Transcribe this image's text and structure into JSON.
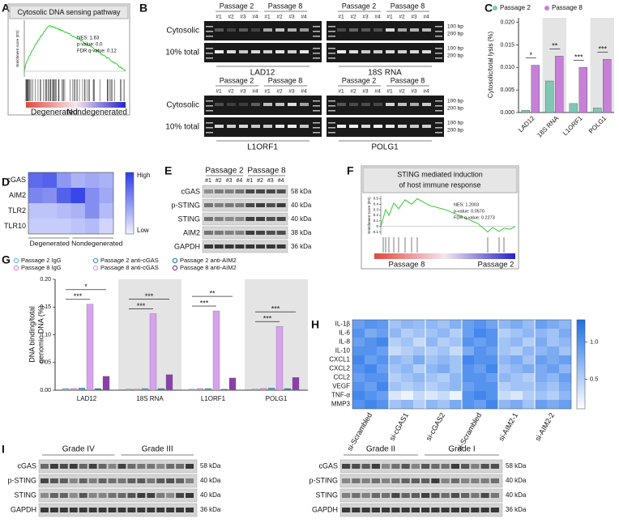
{
  "A": {
    "label": "A",
    "title": "Cytosolic DNA sensing pathway",
    "y_label": "Enrichment score (ES)",
    "stats": [
      "NES: 1.63",
      "p-value: 0.0",
      "FDR q-value: 0.12"
    ],
    "groups": [
      "Degenerated",
      "Nondegenerated"
    ]
  },
  "B": {
    "label": "B",
    "gel_rows": [
      {
        "row_labels": [
          "Cytosolic",
          "10% total"
        ],
        "sizes": [
          "100 bp",
          "200 bp"
        ],
        "gels": [
          {
            "name": "LAD12",
            "passages": [
              "Passage 2",
              "Passage 8"
            ],
            "lanes": [
              "#1",
              "#2",
              "#3",
              "#4",
              "#1",
              "#2",
              "#3",
              "#4"
            ]
          },
          {
            "name": "18S RNA",
            "passages": [
              "Passage 2",
              "Passage 8"
            ],
            "lanes": [
              "#1",
              "#2",
              "#3",
              "#4",
              "#1",
              "#2",
              "#3",
              "#4"
            ]
          }
        ]
      },
      {
        "row_labels": [
          "Cytosolic",
          "10% total"
        ],
        "sizes": [
          "100 bp",
          "200 bp"
        ],
        "gels": [
          {
            "name": "L1ORF1",
            "passages": [
              "Passage 2",
              "Passage 8"
            ],
            "lanes": [
              "#1",
              "#2",
              "#3",
              "#4",
              "#1",
              "#2",
              "#3",
              "#4"
            ]
          },
          {
            "name": "POLG1",
            "passages": [
              "Passage 2",
              "Passage 8"
            ],
            "lanes": [
              "#1",
              "#2",
              "#3",
              "#4",
              "#1",
              "#2",
              "#3",
              "#4"
            ]
          }
        ]
      }
    ]
  },
  "C": {
    "label": "C",
    "y_label": "Cytosolic/total lysis (%)",
    "categories": [
      "LAD12",
      "18S RNA",
      "L1ORF1",
      "POLG1"
    ],
    "series": [
      {
        "name": "Passage 2",
        "color": "#7fc7b5",
        "values": [
          0.0005,
          0.007,
          0.002,
          0.001
        ]
      },
      {
        "name": "Passage 8",
        "color": "#c77fd8",
        "values": [
          0.0105,
          0.0125,
          0.01,
          0.0118
        ]
      }
    ],
    "ylim": [
      0,
      0.021
    ],
    "yticks": [
      {
        "value": 0,
        "label": "0.000"
      },
      {
        "value": 0.005,
        "label": "0.005"
      },
      {
        "value": 0.01,
        "label": "0.010"
      },
      {
        "value": 0.015,
        "label": "0.015"
      },
      {
        "value": 0.02,
        "label": "0.020"
      }
    ],
    "significance": [
      "*",
      "**",
      "***",
      "***"
    ]
  },
  "D": {
    "label": "D",
    "rows": [
      "cGAS",
      "AIM2",
      "TLR2",
      "TLR10"
    ],
    "groups": [
      "Degenerated",
      "Nondegenerated"
    ],
    "colorbar": [
      "High",
      "Low"
    ],
    "values": [
      [
        0.75,
        0.8,
        0.5,
        0.35,
        0.4,
        0.35
      ],
      [
        0.6,
        0.55,
        0.8,
        0.95,
        0.55,
        0.4
      ],
      [
        0.25,
        0.25,
        0.3,
        0.35,
        0.55,
        0.3
      ],
      [
        0.2,
        0.2,
        0.2,
        0.25,
        0.3,
        0.15
      ]
    ]
  },
  "E": {
    "label": "E",
    "passages": [
      "Passage 2",
      "Passage 8"
    ],
    "lanes": [
      "#1",
      "#2",
      "#3",
      "#4",
      "#1",
      "#2",
      "#3",
      "#4"
    ],
    "proteins": [
      "cGAS",
      "p-STING",
      "STING",
      "AIM2",
      "GAPDH"
    ],
    "sizes": [
      "58 kDa",
      "40 kDa",
      "40 kDa",
      "38 kDa",
      "36 kDa"
    ]
  },
  "F": {
    "label": "F",
    "title": [
      "STING mediated induction",
      "of host immune response"
    ],
    "y_label": "Enrichment score (ES)",
    "ylim": [
      -0.15,
      0.55
    ],
    "yticks": [
      0.5,
      0.4,
      0.3,
      0.2,
      0.1,
      0,
      -0.1
    ],
    "stats": [
      "NES: 1.2003",
      "p-value: 0.0570",
      "FDR q-value: 0.2273"
    ],
    "groups": [
      "Passage 8",
      "Passage 2"
    ]
  },
  "G": {
    "label": "G",
    "y_label": [
      "DNA binding/total",
      "genomic DNA (%)"
    ],
    "categories": [
      "LAD12",
      "18S RNA",
      "L1ORF1",
      "POLG1"
    ],
    "series": [
      {
        "name": "Passage 2 IgG",
        "color": "#6fb9e8",
        "values": [
          0.003,
          0.002,
          0.002,
          0.002
        ]
      },
      {
        "name": "Passage 8 IgG",
        "color": "#e48bd2",
        "values": [
          0.003,
          0.002,
          0.003,
          0.003
        ]
      },
      {
        "name": "Passage 2 anti-cGAS",
        "color": "#4a9fc8",
        "values": [
          0.004,
          0.003,
          0.003,
          0.004
        ]
      },
      {
        "name": "Passage 8 anti-cGAS",
        "color": "#d6a2f0",
        "values": [
          0.155,
          0.138,
          0.143,
          0.115
        ]
      },
      {
        "name": "Passage 2 anti-AIM2",
        "color": "#2a8a9a",
        "values": [
          0.003,
          0.003,
          0.002,
          0.003
        ]
      },
      {
        "name": "Passage 8 anti-AIM2",
        "color": "#8b3fa8",
        "values": [
          0.025,
          0.028,
          0.022,
          0.023
        ]
      }
    ],
    "ylim": [
      0,
      0.2
    ],
    "yticks": [
      {
        "value": 0,
        "label": "0.00"
      },
      {
        "value": 0.05,
        "label": "0.05"
      },
      {
        "value": 0.1,
        "label": "0.10"
      },
      {
        "value": 0.15,
        "label": "0.15"
      },
      {
        "value": 0.2,
        "label": "0.20"
      }
    ],
    "significance": [
      [
        "***",
        "*"
      ],
      [
        "***",
        "***"
      ],
      [
        "***",
        "**"
      ],
      [
        "***",
        "***"
      ]
    ]
  },
  "H": {
    "label": "H",
    "rows": [
      "IL-1β",
      "IL-6",
      "IL-8",
      "IL-10",
      "CXCL1",
      "CXCL2",
      "CCL2",
      "VEGF",
      "TNF-α",
      "MMP3"
    ],
    "groups": [
      "si-Scrambled",
      "si-cGAS1",
      "si-cGAS2",
      "si-Scrambled",
      "si-AIM2-1",
      "si-AIM2-2"
    ],
    "colorbar": {
      "lim": [
        0.1,
        1.3
      ],
      "ticks": [
        {
          "value": 1,
          "label": "1.0"
        },
        0.5
      ]
    },
    "values": [
      [
        0.9,
        1.0,
        0.95,
        0.6,
        0.7,
        0.65,
        0.7,
        0.6,
        0.75,
        0.9,
        1.0,
        0.85,
        0.7,
        0.8,
        0.65,
        0.9,
        0.8,
        0.7
      ],
      [
        1.0,
        0.8,
        0.9,
        0.7,
        0.5,
        0.6,
        0.6,
        0.7,
        0.5,
        0.9,
        1.1,
        1.0,
        0.5,
        0.6,
        0.7,
        0.7,
        0.6,
        0.8
      ],
      [
        0.9,
        1.0,
        1.1,
        0.5,
        0.6,
        0.4,
        0.7,
        0.5,
        0.6,
        1.0,
        0.9,
        1.0,
        0.6,
        0.7,
        0.5,
        0.8,
        0.6,
        0.7
      ],
      [
        1.0,
        1.0,
        0.9,
        0.4,
        0.5,
        0.6,
        0.5,
        0.6,
        0.4,
        0.8,
        1.0,
        0.9,
        0.6,
        0.5,
        0.7,
        0.7,
        0.8,
        0.6
      ],
      [
        1.1,
        0.9,
        1.0,
        0.7,
        0.6,
        0.8,
        0.6,
        0.7,
        0.6,
        1.1,
        1.0,
        1.0,
        0.7,
        0.8,
        0.6,
        0.9,
        0.8,
        0.9
      ],
      [
        1.0,
        1.1,
        0.9,
        0.6,
        0.7,
        0.5,
        0.7,
        0.8,
        0.6,
        1.0,
        0.9,
        1.1,
        0.6,
        0.7,
        0.8,
        0.8,
        0.9,
        0.7
      ],
      [
        0.9,
        1.0,
        1.0,
        0.5,
        0.6,
        0.7,
        0.6,
        0.5,
        0.7,
        1.0,
        1.0,
        0.9,
        0.7,
        0.6,
        0.5,
        0.8,
        0.7,
        0.9
      ],
      [
        1.0,
        0.9,
        1.1,
        0.6,
        0.5,
        0.6,
        0.5,
        0.6,
        0.7,
        0.9,
        1.0,
        1.0,
        0.5,
        0.6,
        0.6,
        0.7,
        0.6,
        0.8
      ],
      [
        1.1,
        1.0,
        0.9,
        0.3,
        0.2,
        0.4,
        0.3,
        0.4,
        0.2,
        1.0,
        1.1,
        1.0,
        0.4,
        0.3,
        0.5,
        0.6,
        0.5,
        0.7
      ],
      [
        1.0,
        1.1,
        1.0,
        0.6,
        0.7,
        0.5,
        0.7,
        0.6,
        0.8,
        1.0,
        0.9,
        1.1,
        0.7,
        0.8,
        0.6,
        0.9,
        0.8,
        0.9
      ]
    ]
  },
  "I": {
    "label": "I",
    "blots": [
      {
        "grades": [
          "Grade IV",
          "Grade III"
        ],
        "proteins": [
          "cGAS",
          "p-STING",
          "STING",
          "GAPDH"
        ],
        "sizes": [
          "58 kDa",
          "40 kDa",
          "40 kDa",
          "36 kDa"
        ]
      },
      {
        "grades": [
          "Grade II",
          "Grade I"
        ],
        "proteins": [
          "cGAS",
          "p-STING",
          "STING",
          "GAPDH"
        ],
        "sizes": [
          "58 kDa",
          "40 kDa",
          "40 kDa",
          "36 kDa"
        ]
      }
    ]
  }
}
